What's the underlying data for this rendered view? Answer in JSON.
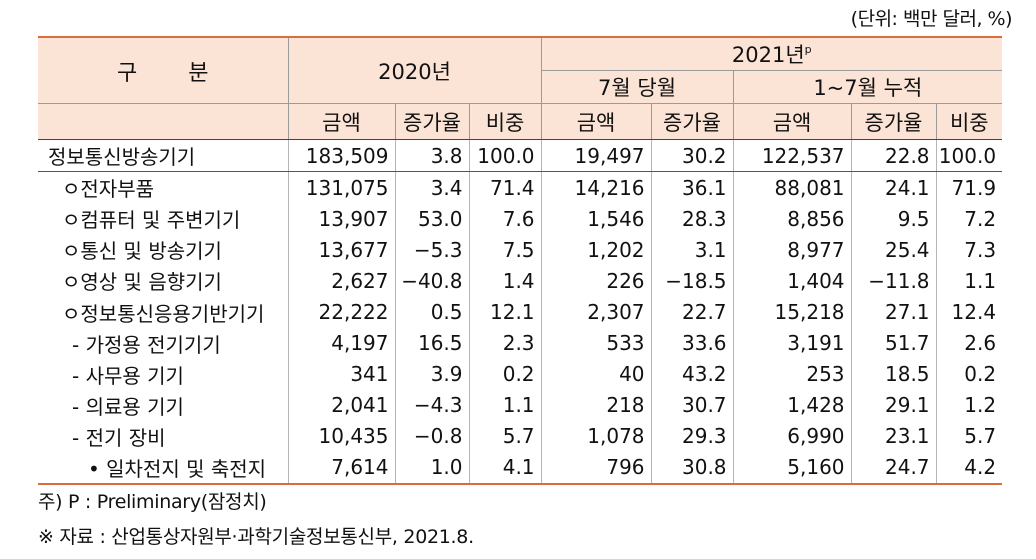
{
  "unit_note": "(단위: 백만 달러, %)",
  "header": {
    "gubun": "구 분",
    "y2020": "2020년",
    "y2021": "2021년",
    "y2021_sup": "p",
    "july": "7월 당월",
    "jan_jul": "1~7월 누적",
    "col_amount": "금액",
    "col_growth": "증가율",
    "col_share": "비중"
  },
  "rows": [
    {
      "name": "정보통신방송기기",
      "v": [
        "183,509",
        "3.8",
        "100.0",
        "19,497",
        "30.2",
        "122,537",
        "22.8",
        "100.0"
      ]
    },
    {
      "name": "ㅇ전자부품",
      "v": [
        "131,075",
        "3.4",
        "71.4",
        "14,216",
        "36.1",
        "88,081",
        "24.1",
        "71.9"
      ]
    },
    {
      "name": "ㅇ컴퓨터 및 주변기기",
      "v": [
        "13,907",
        "53.0",
        "7.6",
        "1,546",
        "28.3",
        "8,856",
        "9.5",
        "7.2"
      ]
    },
    {
      "name": "ㅇ통신 및 방송기기",
      "v": [
        "13,677",
        "−5.3",
        "7.5",
        "1,202",
        "3.1",
        "8,977",
        "25.4",
        "7.3"
      ]
    },
    {
      "name": "ㅇ영상 및 음향기기",
      "v": [
        "2,627",
        "−40.8",
        "1.4",
        "226",
        "−18.5",
        "1,404",
        "−11.8",
        "1.1"
      ]
    },
    {
      "name": "ㅇ정보통신응용기반기기",
      "v": [
        "22,222",
        "0.5",
        "12.1",
        "2,307",
        "22.7",
        "15,218",
        "27.1",
        "12.4"
      ]
    },
    {
      "name": "- 가정용 전기기기",
      "v": [
        "4,197",
        "16.5",
        "2.3",
        "533",
        "33.6",
        "3,191",
        "51.7",
        "2.6"
      ]
    },
    {
      "name": "- 사무용 기기",
      "v": [
        "341",
        "3.9",
        "0.2",
        "40",
        "43.2",
        "253",
        "18.5",
        "0.2"
      ]
    },
    {
      "name": "- 의료용 기기",
      "v": [
        "2,041",
        "−4.3",
        "1.1",
        "218",
        "30.7",
        "1,428",
        "29.1",
        "1.2"
      ]
    },
    {
      "name": "- 전기 장비",
      "v": [
        "10,435",
        "−0.8",
        "5.7",
        "1,078",
        "29.3",
        "6,990",
        "23.1",
        "5.7"
      ]
    },
    {
      "name": "• 일차전지 및 축전지",
      "v": [
        "7,614",
        "1.0",
        "4.1",
        "796",
        "30.8",
        "5,160",
        "24.7",
        "4.2"
      ]
    }
  ],
  "notes": {
    "note1": "주) P : Preliminary(잠정치)",
    "note2": "※ 자료 : 산업통상자원부·과학기술정보통신부, 2021.8."
  }
}
